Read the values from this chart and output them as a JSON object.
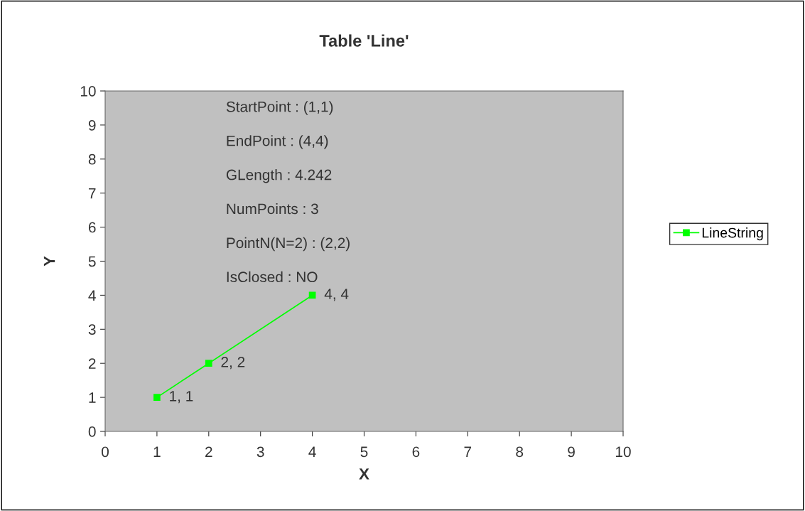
{
  "chart_data": {
    "type": "line",
    "title": "Table 'Line'",
    "xlabel": "X",
    "ylabel": "Y",
    "x": [
      1,
      2,
      4
    ],
    "series": [
      {
        "name": "LineString",
        "color": "#00ff00",
        "values": [
          1,
          2,
          4
        ],
        "value_labels": [
          "1, 1",
          "2, 2",
          "4, 4"
        ]
      }
    ],
    "xlim": [
      0,
      10
    ],
    "ylim": [
      0,
      10
    ],
    "xticks": [
      0,
      1,
      2,
      3,
      4,
      5,
      6,
      7,
      8,
      9,
      10
    ],
    "yticks": [
      0,
      1,
      2,
      3,
      4,
      5,
      6,
      7,
      8,
      9,
      10
    ],
    "grid": false,
    "legend": "right",
    "marker": "square",
    "line_style": "solid",
    "annotations": [
      "StartPoint : (1,1)",
      "EndPoint : (4,4)",
      "GLength : 4.242",
      "NumPoints : 3",
      "PointN(N=2) : (2,2)",
      "IsClosed : NO"
    ]
  }
}
